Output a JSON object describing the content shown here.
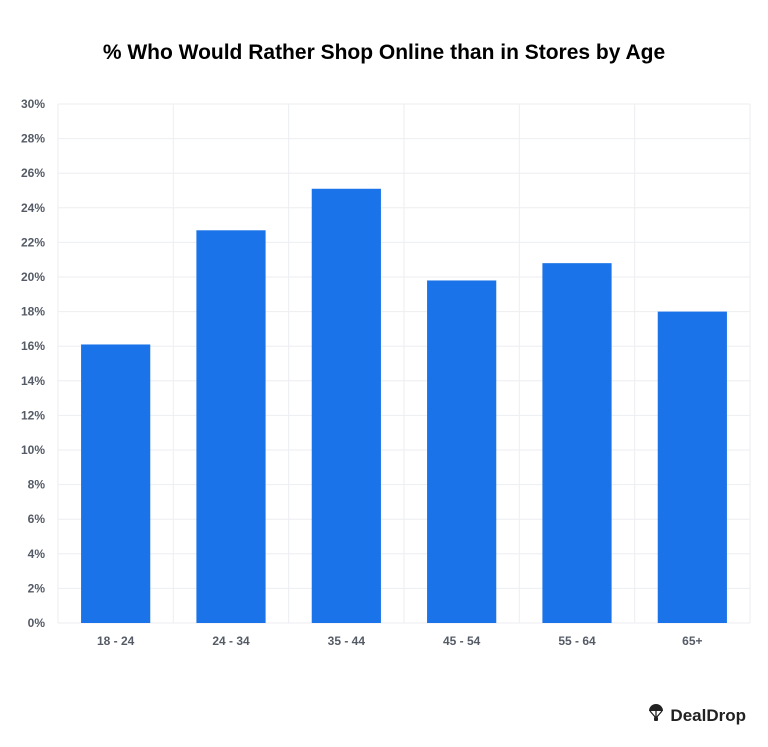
{
  "chart_data": {
    "type": "bar",
    "title": "% Who Would Rather Shop Online than in Stores by Age",
    "categories": [
      "18 - 24",
      "24 - 34",
      "35 - 44",
      "45 - 54",
      "55 - 64",
      "65+"
    ],
    "values": [
      16.1,
      22.7,
      25.1,
      19.8,
      20.8,
      18.0
    ],
    "ylim": [
      0,
      30
    ],
    "yticks": [
      "0%",
      "2%",
      "4%",
      "6%",
      "8%",
      "10%",
      "12%",
      "14%",
      "16%",
      "18%",
      "20%",
      "22%",
      "24%",
      "26%",
      "28%",
      "30%"
    ],
    "xlabel": "",
    "ylabel": "",
    "grid": true,
    "bar_color": "#1a73e8"
  },
  "brand": {
    "name": "DealDrop",
    "icon": "parachute-icon"
  }
}
